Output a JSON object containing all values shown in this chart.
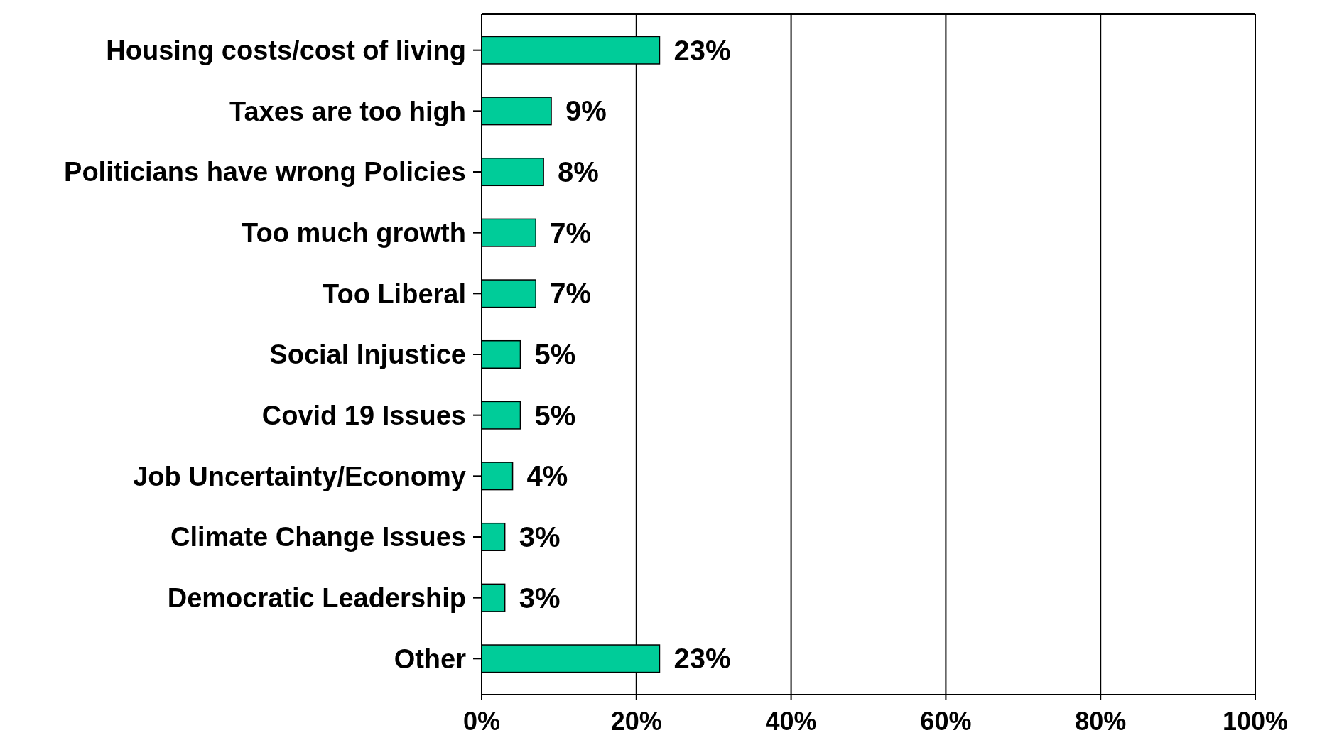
{
  "chart_data": {
    "type": "bar",
    "orientation": "horizontal",
    "categories": [
      "Housing costs/cost of living",
      "Taxes are too high",
      "Politicians have wrong Policies",
      "Too much growth",
      "Too Liberal",
      "Social Injustice",
      "Covid 19 Issues",
      "Job Uncertainty/Economy",
      "Climate Change Issues",
      "Democratic Leadership",
      "Other"
    ],
    "values": [
      23,
      9,
      8,
      7,
      7,
      5,
      5,
      4,
      3,
      3,
      23
    ],
    "value_labels": [
      "23%",
      "9%",
      "8%",
      "7%",
      "7%",
      "5%",
      "5%",
      "4%",
      "3%",
      "3%",
      "23%"
    ],
    "color": "#00cc99",
    "xlim": [
      0,
      100
    ],
    "xticks": [
      {
        "value": 0,
        "label": "0%"
      },
      {
        "value": 20,
        "label": "20%"
      },
      {
        "value": 40,
        "label": "40%"
      },
      {
        "value": 60,
        "label": "60%"
      },
      {
        "value": 80,
        "label": "80%"
      },
      {
        "value": 100,
        "label": "100%"
      }
    ],
    "grid": "x"
  }
}
